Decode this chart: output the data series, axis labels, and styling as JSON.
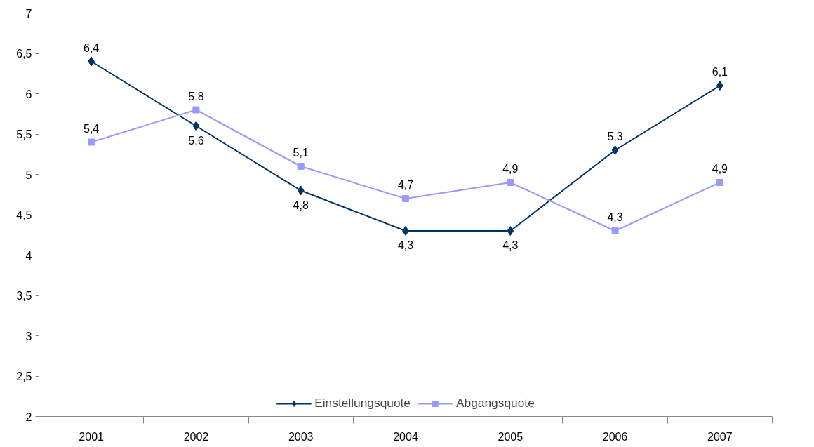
{
  "chart_data": {
    "type": "line",
    "categories": [
      "2001",
      "2002",
      "2003",
      "2004",
      "2005",
      "2006",
      "2007"
    ],
    "series": [
      {
        "name": "Einstellungsquote",
        "color": "#003366",
        "marker": "diamond",
        "values": [
          6.4,
          5.6,
          4.8,
          4.3,
          4.3,
          5.3,
          6.1
        ],
        "value_labels": [
          "6,4",
          "5,6",
          "4,8",
          "4,3",
          "4,3",
          "5,3",
          "6,1"
        ]
      },
      {
        "name": "Abgangsquote",
        "color": "#9999ff",
        "marker": "square",
        "values": [
          5.4,
          5.8,
          5.1,
          4.7,
          4.9,
          4.3,
          4.9
        ],
        "value_labels": [
          "5,4",
          "5,8",
          "5,1",
          "4,7",
          "4,9",
          "4,3",
          "4,9"
        ]
      }
    ],
    "ylim": [
      2,
      7
    ],
    "yticks": [
      2,
      {
        "value": 2.5,
        "label": "2,5"
      },
      3,
      {
        "value": 3.5,
        "label": "3,5"
      },
      4,
      {
        "value": 4.5,
        "label": "4,5"
      },
      5,
      {
        "value": 5.5,
        "label": "5,5"
      },
      6,
      {
        "value": 6.5,
        "label": "6,5"
      },
      7
    ],
    "grid": false,
    "legend": "bottom",
    "line_style": "solid"
  }
}
